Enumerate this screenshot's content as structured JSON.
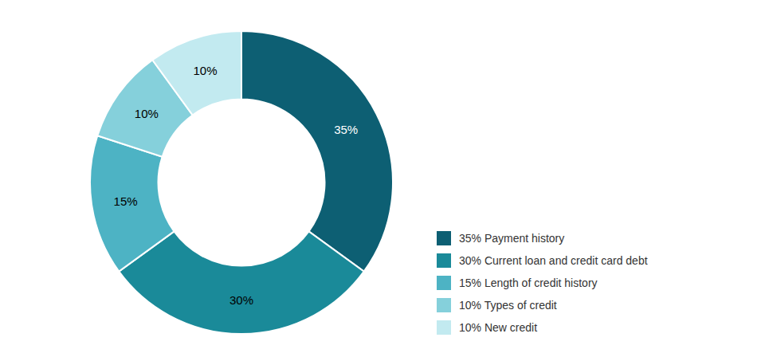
{
  "chart_data": {
    "type": "pie",
    "categories": [
      "35% Payment history",
      "30% Current loan and credit card debt",
      "15% Length of credit history",
      "10% Types of credit",
      "10% New credit"
    ],
    "values": [
      35,
      30,
      15,
      10,
      10
    ],
    "value_labels": [
      "35%",
      "30%",
      "15%",
      "10%",
      "10%"
    ],
    "colors": [
      "#0d5f73",
      "#1a8a99",
      "#4db3c4",
      "#85d0db",
      "#c2eaf0"
    ],
    "data_labels": true,
    "legend": "lower right"
  }
}
